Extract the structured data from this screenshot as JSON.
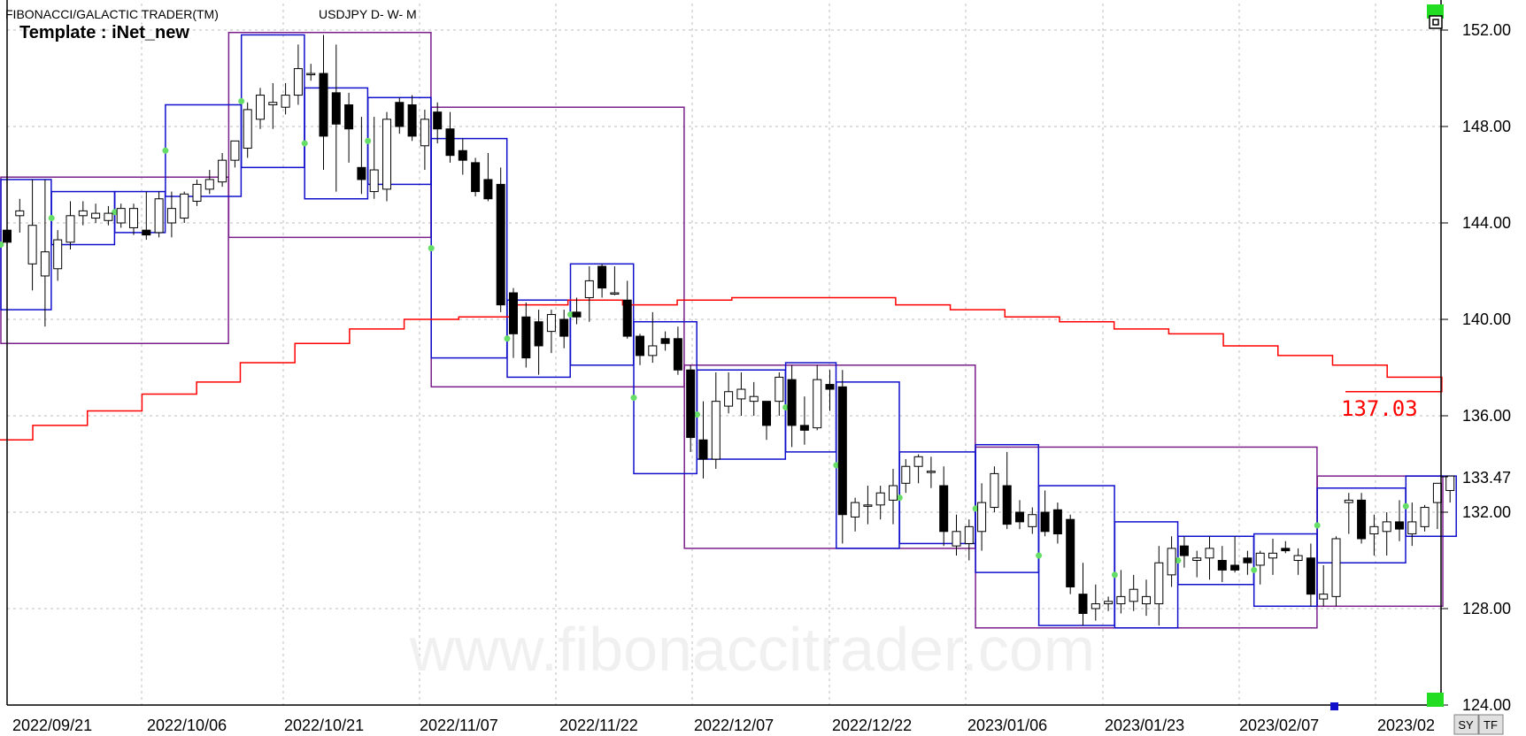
{
  "header": {
    "title": "FIBONACCI/GALACTIC TRADER(TM)",
    "symbol": "USDJPY D- W- M",
    "template": "Template : iNet_new"
  },
  "watermark": "www.fibonaccitrader.com",
  "buttons": {
    "sy": "SY",
    "tf": "TF"
  },
  "colors": {
    "bg": "#ffffff",
    "grid": "#bdbdbd",
    "candle": "#000000",
    "weekly_box": "#1010cc",
    "monthly_box": "#7a1f8a",
    "ma": "#ff0000",
    "marker": "#66dd66"
  },
  "chart_data": {
    "type": "candlestick",
    "ylim": [
      124,
      152
    ],
    "y_ticks": [
      "152.00",
      "148.00",
      "144.00",
      "140.00",
      "136.00",
      "132.00",
      "128.00",
      "124.00"
    ],
    "last_price_label": "133.47",
    "last_price": 133.47,
    "ma_label": "137.03",
    "x_tick_labels": [
      "2022/09/21",
      "2022/10/06",
      "2022/10/21",
      "2022/11/07",
      "2022/11/22",
      "2022/12/07",
      "2022/12/22",
      "2023/01/06",
      "2023/01/23",
      "2023/02/07",
      "2023/02"
    ],
    "candles": [
      [
        143.7,
        144.3,
        142.9,
        143.2
      ],
      [
        144.3,
        145.0,
        143.6,
        144.5
      ],
      [
        142.3,
        145.8,
        141.2,
        143.9
      ],
      [
        141.8,
        145.8,
        139.7,
        142.8
      ],
      [
        142.1,
        143.7,
        141.6,
        143.3
      ],
      [
        143.2,
        144.9,
        142.9,
        144.3
      ],
      [
        144.3,
        144.9,
        143.9,
        144.5
      ],
      [
        144.2,
        144.8,
        144.0,
        144.4
      ],
      [
        144.1,
        144.7,
        143.9,
        144.4
      ],
      [
        144.0,
        144.8,
        143.8,
        144.6
      ],
      [
        143.8,
        144.8,
        143.5,
        144.6
      ],
      [
        143.7,
        145.3,
        143.3,
        143.5
      ],
      [
        143.6,
        145.3,
        143.4,
        145.0
      ],
      [
        144.0,
        145.3,
        143.4,
        144.6
      ],
      [
        144.2,
        145.3,
        144.0,
        145.2
      ],
      [
        144.9,
        145.8,
        144.7,
        145.6
      ],
      [
        145.4,
        146.2,
        145.2,
        145.8
      ],
      [
        145.7,
        146.9,
        145.5,
        146.6
      ],
      [
        146.6,
        147.4,
        146.3,
        147.4
      ],
      [
        147.1,
        149.0,
        146.7,
        148.7
      ],
      [
        148.3,
        149.6,
        147.9,
        149.3
      ],
      [
        148.9,
        149.8,
        147.9,
        149.0
      ],
      [
        148.8,
        149.8,
        148.5,
        149.3
      ],
      [
        149.3,
        151.4,
        148.9,
        150.4
      ],
      [
        150.2,
        150.6,
        149.9,
        150.2
      ],
      [
        150.2,
        151.8,
        146.2,
        147.6
      ],
      [
        149.4,
        151.4,
        145.3,
        148.1
      ],
      [
        148.9,
        149.4,
        146.5,
        147.9
      ],
      [
        146.3,
        148.4,
        145.2,
        145.8
      ],
      [
        145.3,
        148.4,
        145.0,
        146.2
      ],
      [
        145.4,
        148.6,
        144.9,
        148.3
      ],
      [
        149.0,
        149.2,
        147.7,
        148.0
      ],
      [
        148.9,
        149.3,
        147.4,
        147.6
      ],
      [
        147.2,
        148.7,
        146.2,
        148.3
      ],
      [
        148.6,
        149.0,
        147.3,
        147.9
      ],
      [
        147.9,
        148.6,
        146.5,
        146.8
      ],
      [
        147.0,
        147.5,
        146.0,
        146.6
      ],
      [
        146.5,
        146.7,
        145.1,
        145.3
      ],
      [
        145.8,
        146.9,
        144.9,
        145.0
      ],
      [
        145.6,
        146.3,
        140.3,
        140.6
      ],
      [
        141.1,
        141.3,
        138.4,
        139.4
      ],
      [
        140.1,
        140.7,
        138.0,
        138.4
      ],
      [
        139.9,
        140.4,
        137.7,
        138.9
      ],
      [
        139.5,
        140.4,
        138.6,
        140.2
      ],
      [
        140.0,
        140.4,
        138.8,
        139.3
      ],
      [
        140.3,
        140.9,
        139.8,
        140.1
      ],
      [
        140.9,
        142.2,
        139.9,
        141.6
      ],
      [
        142.2,
        142.3,
        140.9,
        141.3
      ],
      [
        141.1,
        142.2,
        141.0,
        141.1
      ],
      [
        140.8,
        141.6,
        139.2,
        139.3
      ],
      [
        139.3,
        139.4,
        138.1,
        138.5
      ],
      [
        138.5,
        140.3,
        138.2,
        138.9
      ],
      [
        139.2,
        139.5,
        138.7,
        139.0
      ],
      [
        139.2,
        139.7,
        137.7,
        137.9
      ],
      [
        137.9,
        138.1,
        134.5,
        135.1
      ],
      [
        135.0,
        136.6,
        133.4,
        134.2
      ],
      [
        134.2,
        137.8,
        133.8,
        136.6
      ],
      [
        136.4,
        137.8,
        136.1,
        137.0
      ],
      [
        136.7,
        137.8,
        136.0,
        137.1
      ],
      [
        136.6,
        137.4,
        136.0,
        136.8
      ],
      [
        136.6,
        136.6,
        135.0,
        135.6
      ],
      [
        136.6,
        137.8,
        136.0,
        137.6
      ],
      [
        137.5,
        138.1,
        134.7,
        135.6
      ],
      [
        135.6,
        136.8,
        134.8,
        135.4
      ],
      [
        135.5,
        138.1,
        135.4,
        137.5
      ],
      [
        137.3,
        137.9,
        136.2,
        137.1
      ],
      [
        137.2,
        137.9,
        130.7,
        131.9
      ],
      [
        131.8,
        132.6,
        131.2,
        132.4
      ],
      [
        132.3,
        133.1,
        131.5,
        132.3
      ],
      [
        132.3,
        133.1,
        131.7,
        132.8
      ],
      [
        132.5,
        133.8,
        131.5,
        133.1
      ],
      [
        133.2,
        134.2,
        132.8,
        133.9
      ],
      [
        133.9,
        134.4,
        133.2,
        134.3
      ],
      [
        133.7,
        134.3,
        133.0,
        133.7
      ],
      [
        133.1,
        133.9,
        130.6,
        131.2
      ],
      [
        130.6,
        131.9,
        130.2,
        131.2
      ],
      [
        130.7,
        131.7,
        130.0,
        131.4
      ],
      [
        131.2,
        133.2,
        130.4,
        132.4
      ],
      [
        132.2,
        133.9,
        132.0,
        133.6
      ],
      [
        133.1,
        134.5,
        131.3,
        131.5
      ],
      [
        132.0,
        132.5,
        131.3,
        131.6
      ],
      [
        131.4,
        132.2,
        131.1,
        131.9
      ],
      [
        132.0,
        132.9,
        131.0,
        131.2
      ],
      [
        132.1,
        132.4,
        130.7,
        131.1
      ],
      [
        131.7,
        131.9,
        128.6,
        128.9
      ],
      [
        128.6,
        129.9,
        127.3,
        127.8
      ],
      [
        128.0,
        129.0,
        127.5,
        128.2
      ],
      [
        128.2,
        128.5,
        127.9,
        128.3
      ],
      [
        128.2,
        129.6,
        127.8,
        128.5
      ],
      [
        128.3,
        129.4,
        127.9,
        128.8
      ],
      [
        128.2,
        129.2,
        127.7,
        128.5
      ],
      [
        128.2,
        130.6,
        127.3,
        129.9
      ],
      [
        129.4,
        131.0,
        128.9,
        130.5
      ],
      [
        130.6,
        131.0,
        129.7,
        130.2
      ],
      [
        130.0,
        130.4,
        129.3,
        130.1
      ],
      [
        130.1,
        131.0,
        129.2,
        130.5
      ],
      [
        130.0,
        130.6,
        129.1,
        129.6
      ],
      [
        129.8,
        131.0,
        129.5,
        129.6
      ],
      [
        130.1,
        130.4,
        129.4,
        129.9
      ],
      [
        129.8,
        130.4,
        129.0,
        130.3
      ],
      [
        130.1,
        130.9,
        129.4,
        130.3
      ],
      [
        130.5,
        130.8,
        130.3,
        130.4
      ],
      [
        130.0,
        130.5,
        129.4,
        130.2
      ],
      [
        130.1,
        130.7,
        128.1,
        128.6
      ],
      [
        128.4,
        129.8,
        128.1,
        128.6
      ],
      [
        128.5,
        131.0,
        128.1,
        130.9
      ],
      [
        132.4,
        132.8,
        131.1,
        132.5
      ],
      [
        132.5,
        132.8,
        130.7,
        130.9
      ],
      [
        131.1,
        131.9,
        130.2,
        131.4
      ],
      [
        131.2,
        132.0,
        130.2,
        131.6
      ],
      [
        131.6,
        132.5,
        130.8,
        131.3
      ],
      [
        131.1,
        132.4,
        130.6,
        131.6
      ],
      [
        131.4,
        132.3,
        131.2,
        132.2
      ],
      [
        132.4,
        133.2,
        131.3,
        133.2
      ],
      [
        132.9,
        133.5,
        132.4,
        133.5
      ]
    ],
    "weekly_boxes": [
      [
        0,
        3,
        140.4,
        145.8
      ],
      [
        4,
        8,
        143.1,
        145.3
      ],
      [
        9,
        12,
        143.6,
        145.3
      ],
      [
        13,
        18,
        145.1,
        148.9
      ],
      [
        19,
        23,
        146.3,
        151.8
      ],
      [
        24,
        28,
        145.0,
        149.6
      ],
      [
        29,
        33,
        145.6,
        149.2
      ],
      [
        34,
        39,
        138.4,
        147.5
      ],
      [
        40,
        44,
        137.6,
        140.8
      ],
      [
        45,
        49,
        138.1,
        142.3
      ],
      [
        50,
        54,
        133.6,
        139.9
      ],
      [
        55,
        61,
        134.2,
        137.9
      ],
      [
        62,
        65,
        134.5,
        138.2
      ],
      [
        66,
        70,
        130.5,
        137.4
      ],
      [
        71,
        76,
        130.7,
        134.5
      ],
      [
        77,
        81,
        129.5,
        134.8
      ],
      [
        82,
        87,
        127.3,
        133.1
      ],
      [
        88,
        92,
        127.2,
        131.6
      ],
      [
        93,
        98,
        129.0,
        131.0
      ],
      [
        99,
        103,
        128.1,
        131.1
      ],
      [
        104,
        110,
        129.9,
        133.0
      ],
      [
        111,
        114,
        131.0,
        133.5
      ]
    ],
    "monthly_boxes": [
      [
        0,
        17,
        139.0,
        145.9
      ],
      [
        18,
        33,
        143.4,
        151.9
      ],
      [
        34,
        53,
        137.2,
        148.8
      ],
      [
        54,
        76,
        130.5,
        138.1
      ],
      [
        77,
        103,
        127.2,
        134.7
      ],
      [
        104,
        129,
        128.1,
        133.5
      ]
    ],
    "ma_steps": [
      [
        0,
        135.0
      ],
      [
        6,
        135.6
      ],
      [
        16,
        136.2
      ],
      [
        26,
        136.9
      ],
      [
        36,
        137.4
      ],
      [
        44,
        138.2
      ],
      [
        54,
        139.0
      ],
      [
        64,
        139.6
      ],
      [
        74,
        140.0
      ],
      [
        84,
        140.1
      ],
      [
        94,
        140.6
      ],
      [
        104,
        140.8
      ],
      [
        114,
        140.6
      ],
      [
        124,
        140.8
      ],
      [
        134,
        140.9
      ],
      [
        144,
        140.9
      ],
      [
        154,
        140.9
      ],
      [
        164,
        140.6
      ],
      [
        174,
        140.4
      ],
      [
        184,
        140.1
      ],
      [
        194,
        139.9
      ],
      [
        204,
        139.6
      ],
      [
        214,
        139.4
      ],
      [
        224,
        138.9
      ],
      [
        234,
        138.5
      ],
      [
        244,
        138.1
      ],
      [
        254,
        137.6
      ],
      [
        264,
        137.0
      ]
    ]
  }
}
